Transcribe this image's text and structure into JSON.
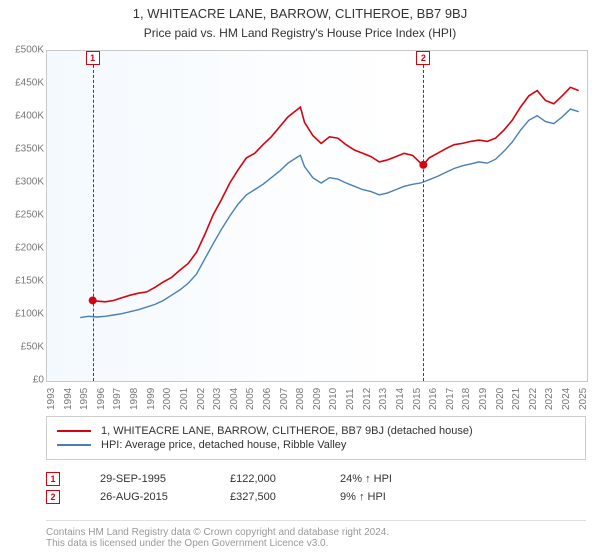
{
  "title": "1, WHITEACRE LANE, BARROW, CLITHEROE, BB7 9BJ",
  "subtitle": "Price paid vs. HM Land Registry's House Price Index (HPI)",
  "chart": {
    "type": "line",
    "x_domain": [
      1993,
      2025.5
    ],
    "y_domain": [
      0,
      500000
    ],
    "ylim": [
      0,
      500000
    ],
    "ytick_step": 50000,
    "y_ticks": [
      0,
      50000,
      100000,
      150000,
      200000,
      250000,
      300000,
      350000,
      400000,
      450000,
      500000
    ],
    "y_tick_labels": [
      "£0",
      "£50K",
      "£100K",
      "£150K",
      "£200K",
      "£250K",
      "£300K",
      "£350K",
      "£400K",
      "£450K",
      "£500K"
    ],
    "x_ticks": [
      1993,
      1994,
      1995,
      1996,
      1997,
      1998,
      1999,
      2000,
      2001,
      2002,
      2003,
      2004,
      2005,
      2006,
      2007,
      2008,
      2009,
      2010,
      2011,
      2012,
      2013,
      2014,
      2015,
      2016,
      2017,
      2018,
      2019,
      2020,
      2021,
      2022,
      2023,
      2024,
      2025
    ],
    "grid_color": "#e3e3e3",
    "background_gradient_from": "#f4f9fe",
    "background_gradient_to": "#ffffff",
    "axis_label_color": "#777777",
    "axis_border_color": "#c9c9c9",
    "title_fontsize": 13,
    "subtitle_fontsize": 12,
    "tick_fontsize": 10,
    "series": [
      {
        "id": "subject",
        "label": "1, WHITEACRE LANE, BARROW, CLITHEROE, BB7 9BJ (detached house)",
        "color": "#d4040e",
        "line_width": 1.6,
        "data": [
          [
            1995.75,
            122000
          ],
          [
            1996,
            121000
          ],
          [
            1996.5,
            120000
          ],
          [
            1997,
            122000
          ],
          [
            1997.5,
            126000
          ],
          [
            1998,
            130000
          ],
          [
            1998.5,
            133000
          ],
          [
            1999,
            135000
          ],
          [
            1999.5,
            142000
          ],
          [
            2000,
            150000
          ],
          [
            2000.5,
            157000
          ],
          [
            2001,
            168000
          ],
          [
            2001.5,
            178000
          ],
          [
            2002,
            195000
          ],
          [
            2002.5,
            222000
          ],
          [
            2003,
            252000
          ],
          [
            2003.5,
            275000
          ],
          [
            2004,
            300000
          ],
          [
            2004.5,
            320000
          ],
          [
            2005,
            338000
          ],
          [
            2005.5,
            345000
          ],
          [
            2006,
            358000
          ],
          [
            2006.5,
            370000
          ],
          [
            2007,
            385000
          ],
          [
            2007.5,
            400000
          ],
          [
            2008,
            410000
          ],
          [
            2008.25,
            415000
          ],
          [
            2008.5,
            392000
          ],
          [
            2009,
            372000
          ],
          [
            2009.5,
            360000
          ],
          [
            2010,
            370000
          ],
          [
            2010.5,
            368000
          ],
          [
            2011,
            358000
          ],
          [
            2011.5,
            350000
          ],
          [
            2012,
            345000
          ],
          [
            2012.5,
            340000
          ],
          [
            2013,
            332000
          ],
          [
            2013.5,
            335000
          ],
          [
            2014,
            340000
          ],
          [
            2014.5,
            345000
          ],
          [
            2015,
            342000
          ],
          [
            2015.5,
            330000
          ],
          [
            2015.65,
            327500
          ],
          [
            2016,
            338000
          ],
          [
            2016.5,
            345000
          ],
          [
            2017,
            352000
          ],
          [
            2017.5,
            358000
          ],
          [
            2018,
            360000
          ],
          [
            2018.5,
            363000
          ],
          [
            2019,
            365000
          ],
          [
            2019.5,
            363000
          ],
          [
            2020,
            368000
          ],
          [
            2020.5,
            380000
          ],
          [
            2021,
            395000
          ],
          [
            2021.5,
            415000
          ],
          [
            2022,
            432000
          ],
          [
            2022.5,
            440000
          ],
          [
            2023,
            425000
          ],
          [
            2023.5,
            420000
          ],
          [
            2024,
            432000
          ],
          [
            2024.5,
            445000
          ],
          [
            2025,
            440000
          ]
        ]
      },
      {
        "id": "hpi",
        "label": "HPI: Average price, detached house, Ribble Valley",
        "color": "#4a7fb5",
        "line_width": 1.4,
        "data": [
          [
            1995,
            96000
          ],
          [
            1995.5,
            98000
          ],
          [
            1996,
            97000
          ],
          [
            1996.5,
            98000
          ],
          [
            1997,
            100000
          ],
          [
            1997.5,
            102000
          ],
          [
            1998,
            105000
          ],
          [
            1998.5,
            108000
          ],
          [
            1999,
            112000
          ],
          [
            1999.5,
            116000
          ],
          [
            2000,
            122000
          ],
          [
            2000.5,
            130000
          ],
          [
            2001,
            138000
          ],
          [
            2001.5,
            148000
          ],
          [
            2002,
            162000
          ],
          [
            2002.5,
            185000
          ],
          [
            2003,
            208000
          ],
          [
            2003.5,
            230000
          ],
          [
            2004,
            250000
          ],
          [
            2004.5,
            268000
          ],
          [
            2005,
            282000
          ],
          [
            2005.5,
            290000
          ],
          [
            2006,
            298000
          ],
          [
            2006.5,
            308000
          ],
          [
            2007,
            318000
          ],
          [
            2007.5,
            330000
          ],
          [
            2008,
            338000
          ],
          [
            2008.25,
            342000
          ],
          [
            2008.5,
            325000
          ],
          [
            2009,
            308000
          ],
          [
            2009.5,
            300000
          ],
          [
            2010,
            308000
          ],
          [
            2010.5,
            306000
          ],
          [
            2011,
            300000
          ],
          [
            2011.5,
            295000
          ],
          [
            2012,
            290000
          ],
          [
            2012.5,
            287000
          ],
          [
            2013,
            282000
          ],
          [
            2013.5,
            285000
          ],
          [
            2014,
            290000
          ],
          [
            2014.5,
            295000
          ],
          [
            2015,
            298000
          ],
          [
            2015.5,
            300000
          ],
          [
            2016,
            305000
          ],
          [
            2016.5,
            310000
          ],
          [
            2017,
            316000
          ],
          [
            2017.5,
            322000
          ],
          [
            2018,
            326000
          ],
          [
            2018.5,
            329000
          ],
          [
            2019,
            332000
          ],
          [
            2019.5,
            330000
          ],
          [
            2020,
            336000
          ],
          [
            2020.5,
            348000
          ],
          [
            2021,
            362000
          ],
          [
            2021.5,
            380000
          ],
          [
            2022,
            395000
          ],
          [
            2022.5,
            402000
          ],
          [
            2023,
            393000
          ],
          [
            2023.5,
            390000
          ],
          [
            2024,
            400000
          ],
          [
            2024.5,
            412000
          ],
          [
            2025,
            408000
          ]
        ]
      }
    ],
    "events": [
      {
        "n": 1,
        "x": 1995.75,
        "date": "29-SEP-1995",
        "price": "£122,000",
        "diff": "24% ↑ HPI",
        "color": "#d4040e"
      },
      {
        "n": 2,
        "x": 2015.65,
        "date": "26-AUG-2015",
        "price": "£327,500",
        "diff": "9% ↑ HPI",
        "color": "#d4040e"
      }
    ]
  },
  "footer": {
    "line1": "Contains HM Land Registry data © Crown copyright and database right 2024.",
    "line2": "This data is licensed under the Open Government Licence v3.0.",
    "color": "#999999"
  }
}
